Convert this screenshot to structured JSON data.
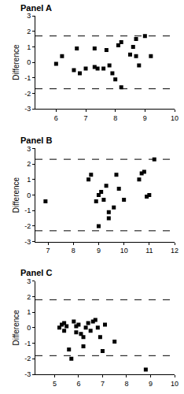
{
  "chart_data": [
    {
      "type": "scatter",
      "title": "Panel A",
      "y_label": "Difference",
      "color": "#000000",
      "marker": "square",
      "x": [
        6.0,
        6.2,
        6.7,
        6.6,
        6.8,
        7.0,
        7.3,
        7.3,
        7.4,
        7.6,
        7.7,
        7.8,
        7.9,
        8.0,
        8.1,
        8.2,
        8.2,
        8.5,
        8.6,
        8.7,
        8.7,
        8.8,
        9.0,
        9.2
      ],
      "values": [
        -0.1,
        0.4,
        0.9,
        -0.5,
        -0.7,
        -0.4,
        0.9,
        -0.3,
        -0.4,
        -0.4,
        0.8,
        -0.2,
        -0.7,
        -1.1,
        1.1,
        1.3,
        -1.6,
        0.5,
        1.0,
        0.4,
        1.5,
        -0.2,
        1.7,
        0.4
      ],
      "limits": [
        1.7,
        -1.7
      ],
      "line_style": "dashed",
      "xlim": [
        5.3,
        10
      ],
      "xticks": [
        6,
        7,
        8,
        9,
        10
      ],
      "ylim": [
        -3,
        3
      ],
      "yticks": [
        -3,
        -2,
        -1,
        0,
        1,
        2,
        3
      ],
      "grid": false
    },
    {
      "type": "scatter",
      "title": "Panel B",
      "y_label": "Difference",
      "color": "#000000",
      "marker": "square",
      "x": [
        6.9,
        8.6,
        8.7,
        8.9,
        9.0,
        9.0,
        9.1,
        9.2,
        9.3,
        9.4,
        9.4,
        9.6,
        9.7,
        9.8,
        10.0,
        10.6,
        10.7,
        10.8,
        10.9,
        11.0,
        11.2
      ],
      "values": [
        -0.4,
        1.0,
        1.3,
        -0.4,
        0.0,
        -2.0,
        0.2,
        -0.3,
        0.6,
        -1.5,
        -1.1,
        -0.8,
        1.3,
        0.4,
        -0.3,
        1.0,
        1.4,
        1.5,
        -0.1,
        0.0,
        2.3
      ],
      "limits": [
        2.3,
        -2.3
      ],
      "line_style": "dashed",
      "xlim": [
        6.5,
        12
      ],
      "xticks": [
        7,
        8,
        9,
        10,
        11,
        12
      ],
      "ylim": [
        -3,
        3
      ],
      "yticks": [
        -3,
        -2,
        -1,
        0,
        1,
        2,
        3
      ],
      "grid": false
    },
    {
      "type": "scatter",
      "title": "Panel C",
      "y_label": "Difference",
      "color": "#000000",
      "marker": "square",
      "x": [
        5.2,
        5.3,
        5.4,
        5.4,
        5.5,
        5.6,
        5.7,
        5.8,
        5.9,
        5.9,
        6.0,
        6.1,
        6.2,
        6.2,
        6.3,
        6.4,
        6.5,
        6.6,
        6.7,
        6.8,
        6.9,
        7.0,
        7.1,
        7.5,
        8.8
      ],
      "values": [
        0.0,
        0.2,
        0.3,
        -0.2,
        0.1,
        -1.4,
        -2.0,
        0.4,
        0.1,
        -0.3,
        0.2,
        -0.4,
        -0.6,
        -1.2,
        0.0,
        0.3,
        -0.2,
        0.4,
        0.5,
        0.0,
        -0.6,
        -1.5,
        0.2,
        -0.9,
        -2.7
      ],
      "limits": [
        1.8,
        -1.8
      ],
      "line_style": "dashed",
      "xlim": [
        4.2,
        10
      ],
      "xticks": [
        5,
        6,
        7,
        8,
        9,
        10
      ],
      "ylim": [
        -3,
        3
      ],
      "yticks": [
        -3,
        -2,
        -1,
        0,
        1,
        2,
        3
      ],
      "grid": false
    }
  ]
}
